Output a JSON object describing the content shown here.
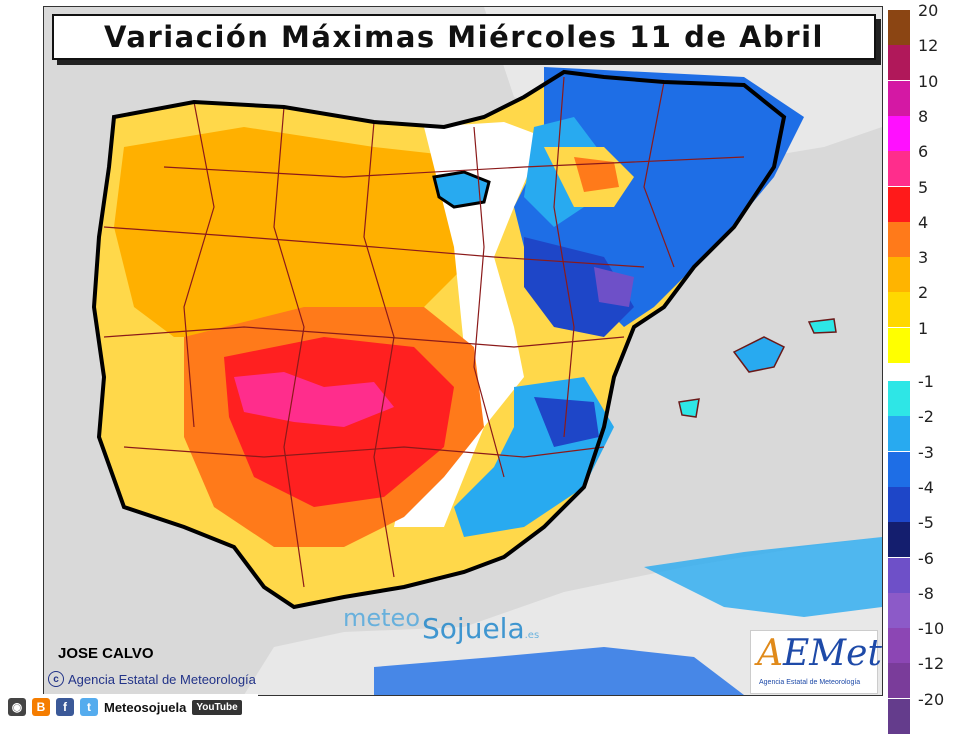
{
  "title": "Variación Máximas Miércoles 11 de Abril",
  "author": "JOSE CALVO",
  "credit": "Agencia Estatal de Meteorología",
  "watermark": {
    "part1": "meteo",
    "part2": "Sojuela",
    "suffix": ".es"
  },
  "aemet": {
    "logo_a": "A",
    "logo_rest": "EMet",
    "subtitle": "Agencia Estatal de Meteorología"
  },
  "social": {
    "name": "Meteosojuela",
    "youtube": "YouTube"
  },
  "legend": [
    {
      "label": "20",
      "color": "#8b4513"
    },
    {
      "label": "12",
      "color": "#b0185a"
    },
    {
      "label": "10",
      "color": "#d418a4"
    },
    {
      "label": "8",
      "color": "#ff10ff"
    },
    {
      "label": "6",
      "color": "#ff2d8c"
    },
    {
      "label": "5",
      "color": "#ff1a1a"
    },
    {
      "label": "4",
      "color": "#ff7a1a"
    },
    {
      "label": "3",
      "color": "#ffb400"
    },
    {
      "label": "2",
      "color": "#ffd800"
    },
    {
      "label": "1",
      "color": "#ffff00"
    },
    {
      "label": "-1",
      "color": "#2ee6e6"
    },
    {
      "label": "-2",
      "color": "#28aaf0"
    },
    {
      "label": "-3",
      "color": "#1e6ee6"
    },
    {
      "label": "-4",
      "color": "#1e46c8"
    },
    {
      "label": "-5",
      "color": "#141e6e"
    },
    {
      "label": "-6",
      "color": "#6e50c8"
    },
    {
      "label": "-8",
      "color": "#8c5ac8"
    },
    {
      "label": "-10",
      "color": "#8c46b4"
    },
    {
      "label": "-12",
      "color": "#7a3c9a"
    },
    {
      "label": "-20",
      "color": "#643c8c"
    }
  ]
}
